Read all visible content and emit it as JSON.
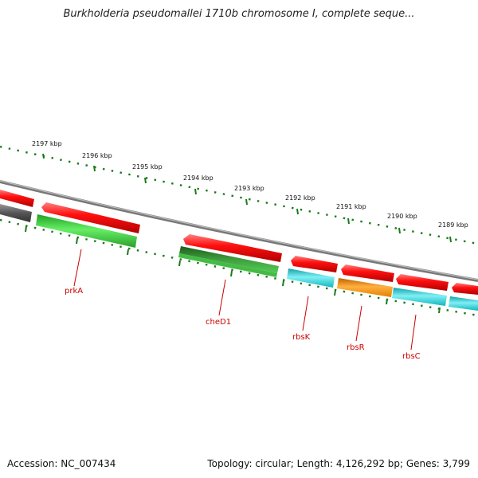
{
  "title": "Burkholderia pseudomallei 1710b chromosome I, complete seque...",
  "footer": {
    "accession": "Accession: NC_007434",
    "summary": "Topology: circular; Length: 4,126,292 bp; Genes: 3,799"
  },
  "ticks": [
    "2197 kbp",
    "2196 kbp",
    "2195 kbp",
    "2194 kbp",
    "2193 kbp",
    "2192 kbp",
    "2191 kbp",
    "2190 kbp",
    "2189 kbp"
  ],
  "gene_labels": [
    "prkA",
    "cheD1",
    "rbsK",
    "rbsR",
    "rbsC"
  ],
  "colors": {
    "reverse_strand": "#ff0000",
    "forward_strand_green": "#33cc33",
    "forward_strand_darkgreen": "#2e8b2e",
    "forward_strand_cyan": "#1cc8d0",
    "forward_strand_orange": "#ff9900",
    "gray_feature": "#666666",
    "backbone": "#888888",
    "tick": "#1a7a1a",
    "label": "#cc0000"
  }
}
